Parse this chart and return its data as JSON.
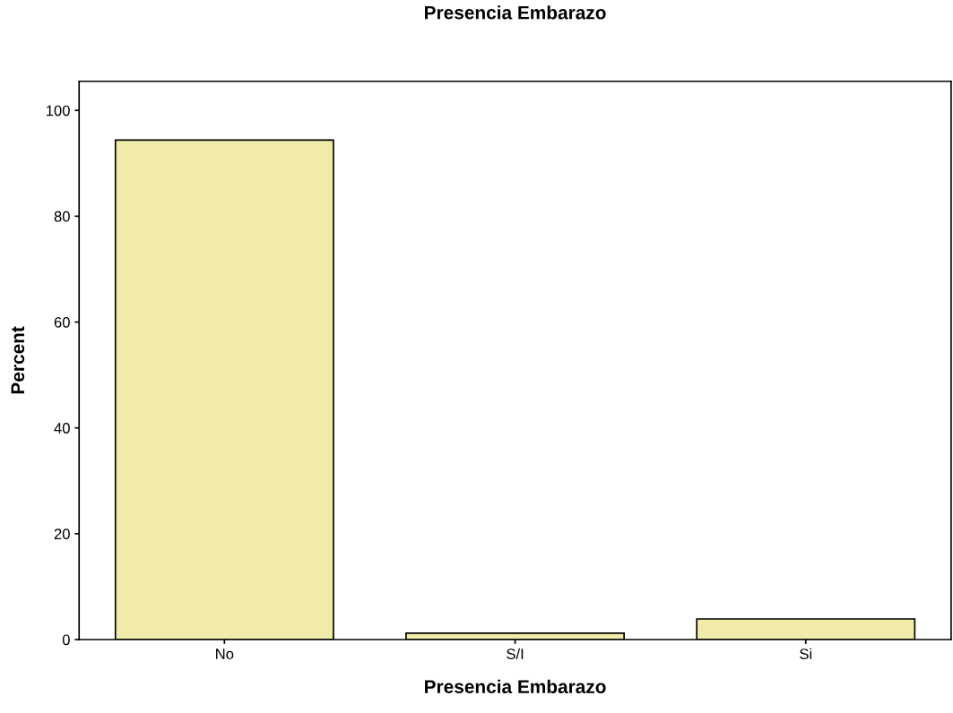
{
  "chart_data": {
    "type": "bar",
    "title": "Presencia Embarazo",
    "xlabel": "Presencia Embarazo",
    "ylabel": "Percent",
    "categories": [
      "No",
      "S/I",
      "Si"
    ],
    "values": [
      94.4,
      1.2,
      3.9
    ],
    "color": "#f0eba8",
    "ylim": [
      0,
      105.5
    ],
    "yticks": [
      0,
      20,
      40,
      60,
      80,
      100
    ],
    "grid": false
  }
}
